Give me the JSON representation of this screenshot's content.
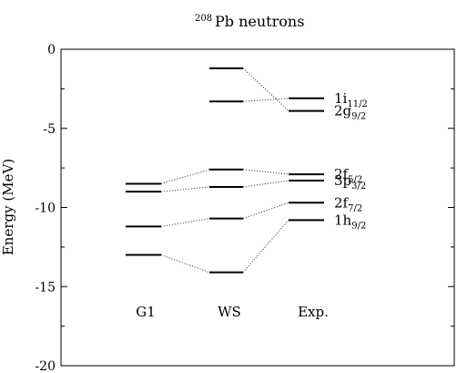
{
  "chart_data": {
    "type": "level-diagram",
    "title": {
      "superscript": "208",
      "main": "Pb neutrons"
    },
    "ylabel": "Energy (MeV)",
    "ylim": [
      -20,
      0
    ],
    "yticks": [
      0,
      -5,
      -10,
      -15,
      -20
    ],
    "ytick_labels": [
      "0",
      "-5",
      "-10",
      "-15",
      "-20"
    ],
    "grid": false,
    "columns": [
      {
        "name": "G1",
        "levels": [
          -8.5,
          -9.0,
          -11.2,
          -13.0
        ]
      },
      {
        "name": "WS",
        "levels": [
          -1.2,
          -3.3,
          -7.6,
          -8.7,
          -10.7,
          -14.1
        ]
      },
      {
        "name": "Exp.",
        "levels": [
          -3.1,
          -3.9,
          -7.9,
          -8.3,
          -9.7,
          -10.8
        ]
      }
    ],
    "connections": [
      {
        "from": [
          1,
          0
        ],
        "to": [
          2,
          1
        ]
      },
      {
        "from": [
          1,
          1
        ],
        "to": [
          2,
          0
        ]
      },
      {
        "from": [
          0,
          0
        ],
        "to": [
          1,
          2
        ]
      },
      {
        "from": [
          1,
          2
        ],
        "to": [
          2,
          2
        ]
      },
      {
        "from": [
          0,
          1
        ],
        "to": [
          1,
          3
        ]
      },
      {
        "from": [
          1,
          3
        ],
        "to": [
          2,
          3
        ]
      },
      {
        "from": [
          0,
          2
        ],
        "to": [
          1,
          4
        ]
      },
      {
        "from": [
          1,
          4
        ],
        "to": [
          2,
          4
        ]
      },
      {
        "from": [
          0,
          3
        ],
        "to": [
          1,
          5
        ]
      },
      {
        "from": [
          1,
          5
        ],
        "to": [
          2,
          5
        ]
      }
    ],
    "state_labels": [
      {
        "main": "1i",
        "sub": "11/2",
        "energy": -3.1
      },
      {
        "main": "2g",
        "sub": "9/2",
        "energy": -3.9
      },
      {
        "main": "2f",
        "sub": "5/2",
        "energy": -7.9
      },
      {
        "main": "3p",
        "sub": "3/2",
        "energy": -8.3
      },
      {
        "main": "2f",
        "sub": "7/2",
        "energy": -9.7
      },
      {
        "main": "1h",
        "sub": "9/2",
        "energy": -10.8
      }
    ]
  }
}
